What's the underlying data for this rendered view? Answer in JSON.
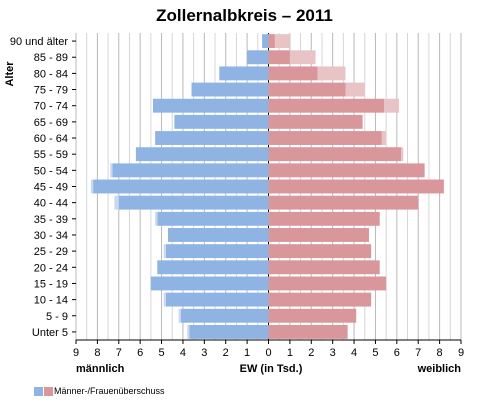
{
  "chart_data": {
    "type": "bar",
    "title": "Zollernalbkreis – 2011",
    "ylabel": "Alter",
    "xlabel": "EW (in Tsd.)",
    "left_label": "männlich",
    "right_label": "weiblich",
    "xlim": [
      -9,
      9
    ],
    "x_ticks": [
      9,
      8,
      7,
      6,
      5,
      4,
      3,
      2,
      1,
      0,
      1,
      2,
      3,
      4,
      5,
      6,
      7,
      8,
      9
    ],
    "grid": true,
    "categories": [
      "Unter 5",
      "5 - 9",
      "10 - 14",
      "15 - 19",
      "20 - 24",
      "25 - 29",
      "30 - 34",
      "35 - 39",
      "40 - 44",
      "45 - 49",
      "50 - 54",
      "55 - 59",
      "60 - 64",
      "65 - 69",
      "70 - 74",
      "75 - 79",
      "80 - 84",
      "85 - 89",
      "90 und älter"
    ],
    "series": [
      {
        "values": [
          3.8,
          4.2,
          4.9,
          5.5,
          5.2,
          4.9,
          4.7,
          5.3,
          7.2,
          8.3,
          7.4,
          6.2,
          5.3,
          4.4,
          5.4,
          3.6,
          2.3,
          1.0,
          0.3
        ],
        "color": "#8fb4e3"
      },
      {
        "values": [
          3.7,
          4.1,
          4.8,
          5.5,
          5.2,
          4.8,
          4.7,
          5.2,
          7.0,
          8.2,
          7.3,
          6.3,
          5.5,
          4.4,
          6.1,
          4.5,
          3.6,
          2.2,
          1.0
        ],
        "color": "#d9969b"
      }
    ],
    "surplus_colors": {
      "male": "#c6d9f1",
      "female": "#e8c4c7"
    },
    "legend": [
      {
        "label": "",
        "color": "#8fb4e3"
      },
      {
        "label": "Männer-/Frauenüberschuss",
        "color": "#d9969b"
      }
    ]
  }
}
